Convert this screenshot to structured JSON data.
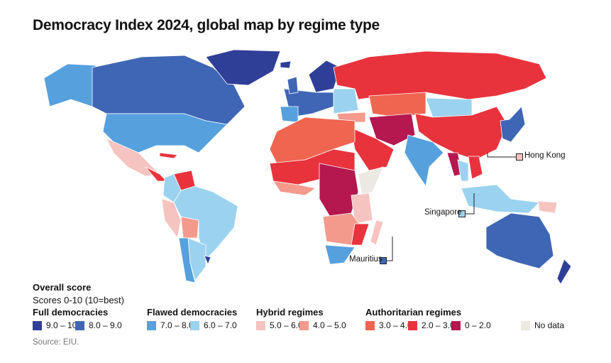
{
  "title": "Democracy Index 2024, global map by regime type",
  "annotations": [
    {
      "label": "Hong Kong",
      "color": "#f5c3c0"
    },
    {
      "label": "Singapore",
      "color": "#9bd2f0"
    },
    {
      "label": "Mauritius",
      "color": "#3f66b5"
    }
  ],
  "legend": {
    "title": "Overall score",
    "subtitle": "Scores 0-10 (10=best)",
    "categories": [
      {
        "name": "Full democracies",
        "bins": [
          {
            "label": "9.0 – 10.0",
            "color": "#2f3f98"
          },
          {
            "label": "8.0 – 9.0",
            "color": "#3f66b5"
          }
        ]
      },
      {
        "name": "Flawed democracies",
        "bins": [
          {
            "label": "7.0 – 8.0",
            "color": "#56a0dd"
          },
          {
            "label": "6.0 – 7.0",
            "color": "#9bd2f0"
          }
        ]
      },
      {
        "name": "Hybrid regimes",
        "bins": [
          {
            "label": "5.0 – 6.0",
            "color": "#f5c3c0"
          },
          {
            "label": "4.0 – 5.0",
            "color": "#f39a8c"
          }
        ]
      },
      {
        "name": "Authoritarian regimes",
        "bins": [
          {
            "label": "3.0 – 4.0",
            "color": "#ef6550"
          },
          {
            "label": "2.0 – 3.0",
            "color": "#e8333d"
          },
          {
            "label": "0 – 2.0",
            "color": "#b5174f"
          }
        ]
      }
    ],
    "no_data": {
      "label": "No data",
      "color": "#ece9e2"
    }
  },
  "source": "Source: EIU."
}
